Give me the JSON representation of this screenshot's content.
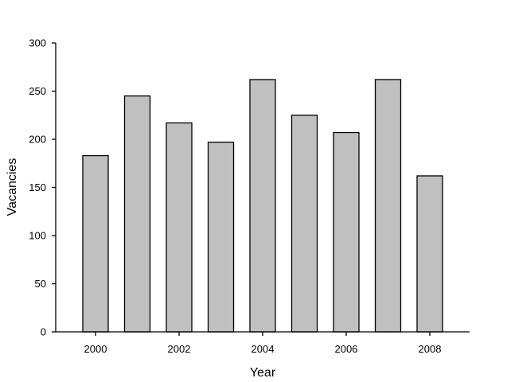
{
  "chart_data": {
    "type": "bar",
    "x": [
      2000,
      2001,
      2002,
      2003,
      2004,
      2005,
      2006,
      2007,
      2008
    ],
    "values": [
      183,
      245,
      217,
      197,
      262,
      225,
      207,
      262,
      162
    ],
    "x_tick_labels": [
      "2000",
      "2002",
      "2004",
      "2006",
      "2008"
    ],
    "y_ticks": [
      0,
      50,
      100,
      150,
      200,
      250,
      300
    ],
    "ylim": [
      0,
      300
    ],
    "xlabel": "Year",
    "ylabel": "Vacancies",
    "grid": false,
    "bar_color": "#c0c0c0"
  }
}
